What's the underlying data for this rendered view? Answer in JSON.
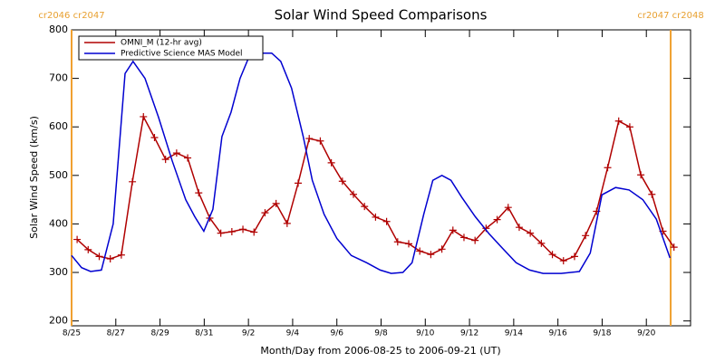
{
  "chart_data": {
    "type": "line",
    "title": "Solar Wind Speed Comparisons",
    "xlabel": "Month/Day from 2006-08-25 to 2006-09-21 (UT)",
    "ylabel": "Solar Wind Speed (km/s)",
    "xlim": [
      0,
      28
    ],
    "ylim": [
      190,
      800
    ],
    "xticks": [
      {
        "value": 0,
        "label": "8/25"
      },
      {
        "value": 2,
        "label": "8/27"
      },
      {
        "value": 4,
        "label": "8/29"
      },
      {
        "value": 6,
        "label": "8/31"
      },
      {
        "value": 8,
        "label": "9/2"
      },
      {
        "value": 10,
        "label": "9/4"
      },
      {
        "value": 12,
        "label": "9/6"
      },
      {
        "value": 14,
        "label": "9/8"
      },
      {
        "value": 16,
        "label": "9/10"
      },
      {
        "value": 18,
        "label": "9/12"
      },
      {
        "value": 20,
        "label": "9/14"
      },
      {
        "value": 22,
        "label": "9/16"
      },
      {
        "value": 24,
        "label": "9/18"
      },
      {
        "value": 26,
        "label": "9/20"
      }
    ],
    "yticks": [
      200,
      300,
      400,
      500,
      600,
      700,
      800
    ],
    "legend": "top-left",
    "vlines": [
      {
        "x": 0,
        "label": "cr2046 cr2047"
      },
      {
        "x": 27.1,
        "label": "cr2047 cr2048"
      }
    ],
    "vline_color": "#f0a030",
    "series": [
      {
        "name": "OMNI_M (12-hr avg)",
        "color": "#b00000",
        "markers": true,
        "x": [
          0.25,
          0.75,
          1.25,
          1.75,
          2.25,
          2.75,
          3.25,
          3.75,
          4.25,
          4.75,
          5.25,
          5.75,
          6.25,
          6.75,
          7.25,
          7.75,
          8.25,
          8.75,
          9.25,
          9.75,
          10.25,
          10.75,
          11.25,
          11.75,
          12.25,
          12.75,
          13.25,
          13.75,
          14.25,
          14.75,
          15.25,
          15.75,
          16.25,
          16.75,
          17.25,
          17.75,
          18.25,
          18.75,
          19.25,
          19.75,
          20.25,
          20.75,
          21.25,
          21.75,
          22.25,
          22.75,
          23.25,
          23.75,
          24.25,
          24.75,
          25.25,
          25.75,
          26.25,
          26.75,
          27.25
        ],
        "values": [
          368,
          347,
          333,
          328,
          336,
          487,
          621,
          578,
          533,
          546,
          536,
          464,
          412,
          381,
          384,
          389,
          383,
          423,
          442,
          401,
          484,
          576,
          571,
          526,
          488,
          461,
          436,
          414,
          405,
          363,
          359,
          344,
          337,
          348,
          387,
          372,
          366,
          391,
          409,
          434,
          393,
          381,
          360,
          337,
          324,
          333,
          376,
          426,
          516,
          612,
          600,
          501,
          461,
          385,
          352
        ]
      },
      {
        "name": "Predictive Science MAS Model",
        "color": "#0000d0",
        "markers": false,
        "x": [
          0,
          0.45,
          0.86,
          1.35,
          1.88,
          2.42,
          2.78,
          3.32,
          3.93,
          4.55,
          5.16,
          5.57,
          5.98,
          6.39,
          6.8,
          7.21,
          7.62,
          8.03,
          8.64,
          9.05,
          9.46,
          9.95,
          10.48,
          10.89,
          11.42,
          12.0,
          12.65,
          13.35,
          13.96,
          14.46,
          14.99,
          15.4,
          15.93,
          16.34,
          16.75,
          17.16,
          17.65,
          18.26,
          18.88,
          19.49,
          20.11,
          20.72,
          21.33,
          22.15,
          22.97,
          23.46,
          23.99,
          24.61,
          25.22,
          25.84,
          26.45,
          27.07
        ],
        "values": [
          335,
          310,
          302,
          305,
          400,
          710,
          735,
          700,
          620,
          530,
          450,
          415,
          385,
          430,
          580,
          630,
          700,
          745,
          752,
          752,
          735,
          680,
          580,
          490,
          420,
          370,
          335,
          320,
          305,
          298,
          300,
          320,
          420,
          490,
          500,
          490,
          455,
          415,
          380,
          350,
          320,
          305,
          298,
          298,
          302,
          340,
          460,
          475,
          470,
          450,
          410,
          330
        ]
      }
    ]
  }
}
